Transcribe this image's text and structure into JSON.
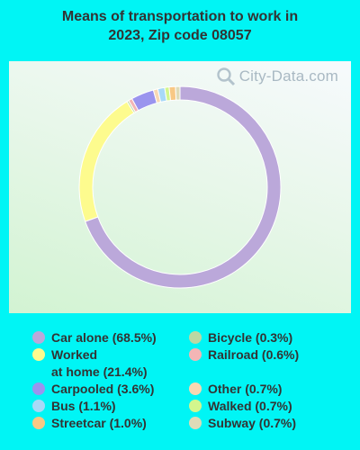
{
  "title_line1": "Means of transportation to work in",
  "title_line2": "2023, Zip code 08057",
  "watermark": "City-Data.com",
  "chart_data": {
    "type": "pie",
    "style": "donut",
    "title": "Means of transportation to work in 2023, Zip code 08057",
    "slices": [
      {
        "label": "Car alone",
        "display": "Car alone (68.5%)",
        "value": 68.5,
        "color": "#bba8da"
      },
      {
        "label": "Worked at home",
        "display": "Worked\nat home (21.4%)",
        "value": 21.4,
        "color": "#fdfb8e"
      },
      {
        "label": "Carpooled",
        "display": "Carpooled (3.6%)",
        "value": 3.6,
        "color": "#9a94ee"
      },
      {
        "label": "Bus",
        "display": "Bus (1.1%)",
        "value": 1.1,
        "color": "#a8d9f7"
      },
      {
        "label": "Streetcar",
        "display": "Streetcar (1.0%)",
        "value": 1.0,
        "color": "#f8c885"
      },
      {
        "label": "Bicycle",
        "display": "Bicycle (0.3%)",
        "value": 0.3,
        "color": "#bcd8a2"
      },
      {
        "label": "Railroad",
        "display": "Railroad (0.6%)",
        "value": 0.6,
        "color": "#f3b5b5"
      },
      {
        "label": "Other",
        "display": "Other (0.7%)",
        "value": 0.7,
        "color": "#f8d8b2"
      },
      {
        "label": "Walked",
        "display": "Walked (0.7%)",
        "value": 0.7,
        "color": "#d3f68d"
      },
      {
        "label": "Subway",
        "display": "Subway (0.7%)",
        "value": 0.7,
        "color": "#dedbb8"
      }
    ],
    "draw_order": [
      "Car alone",
      "Worked at home",
      "Bicycle",
      "Railroad",
      "Carpooled",
      "Other",
      "Bus",
      "Walked",
      "Streetcar",
      "Subway"
    ],
    "legend_position": "bottom"
  }
}
